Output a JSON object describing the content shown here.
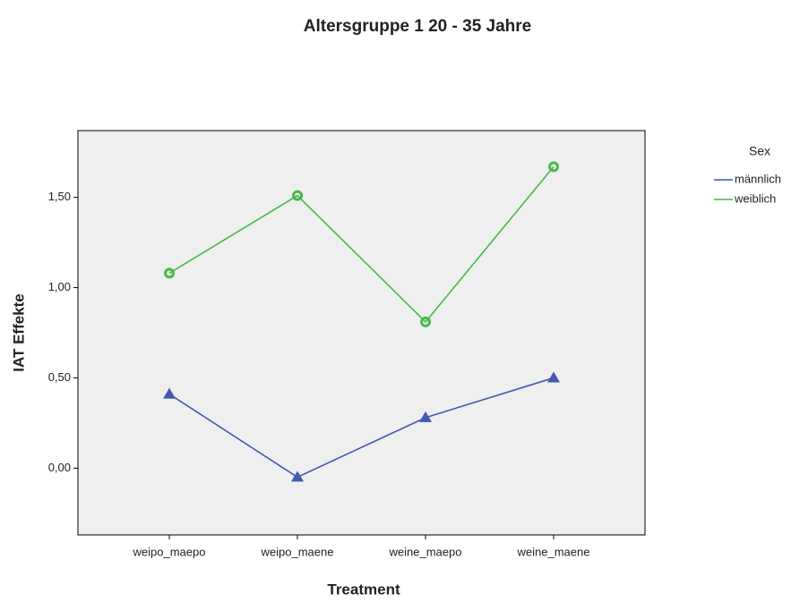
{
  "chart_data": {
    "type": "line",
    "title": "Altersgruppe 1  20 - 35 Jahre",
    "x_label": "Treatment",
    "y_label": "IAT Effekte",
    "legend_title": "Sex",
    "categories": [
      "weipo_maepo",
      "weipo_maene",
      "weine_maepo",
      "weine_maene"
    ],
    "series": [
      {
        "name": "männlich",
        "color": "#4358b0",
        "marker": "triangle",
        "values": [
          0.41,
          -0.05,
          0.28,
          0.5
        ]
      },
      {
        "name": "weiblich",
        "color": "#48b84a",
        "marker": "circle",
        "values": [
          1.08,
          1.51,
          0.81,
          1.67
        ]
      }
    ],
    "ylim": [
      -0.37,
      1.87
    ],
    "yticks": [
      {
        "value": 0,
        "label": "0,00"
      },
      {
        "value": 0.5,
        "label": "0,50"
      },
      {
        "value": 1,
        "label": "1,00"
      },
      {
        "value": 1.5,
        "label": "1,50"
      }
    ],
    "legend": "right",
    "plot_background": "#efefef"
  }
}
